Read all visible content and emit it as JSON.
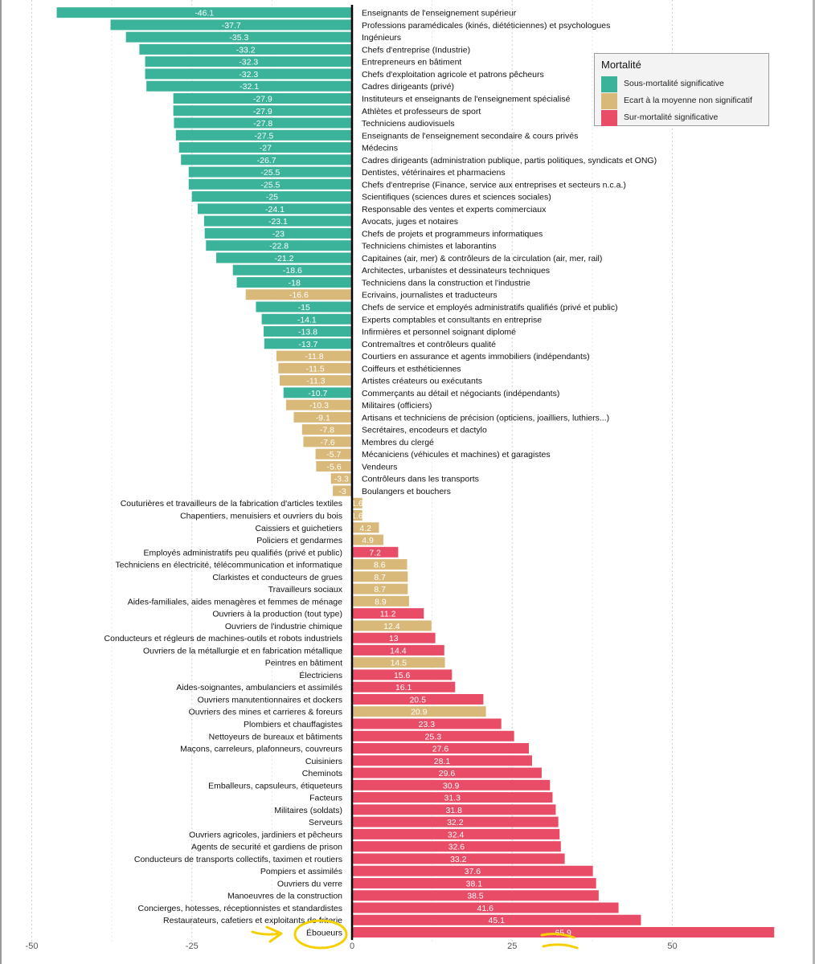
{
  "chart_data": {
    "type": "bar",
    "orientation": "horizontal",
    "xlim": [
      -52,
      66.5
    ],
    "xticks": [
      -50,
      -25,
      0,
      25,
      50
    ],
    "grid": true,
    "legend_position": "top-right",
    "legend": {
      "title": "Mortalité",
      "entries": [
        {
          "key": "sous",
          "label": "Sous-mortalité significative",
          "color": "#3bb39a"
        },
        {
          "key": "ecart",
          "label": "Ecart à la moyenne non significatif",
          "color": "#d8b97a"
        },
        {
          "key": "sur",
          "label": "Sur-mortalité significative",
          "color": "#e84c66"
        }
      ]
    },
    "bars": [
      {
        "label": "Enseignants de l'enseignement supérieur",
        "value": -46.1,
        "group": "sous"
      },
      {
        "label": "Professions paramédicales (kinés, diététiciennes) et psychologues",
        "value": -37.7,
        "group": "sous"
      },
      {
        "label": "Ingénieurs",
        "value": -35.3,
        "group": "sous"
      },
      {
        "label": "Chefs d'entreprise (Industrie)",
        "value": -33.2,
        "group": "sous"
      },
      {
        "label": "Entrepreneurs en bâtiment",
        "value": -32.3,
        "group": "sous"
      },
      {
        "label": "Chefs d'exploitation agricole et patrons pêcheurs",
        "value": -32.3,
        "group": "sous"
      },
      {
        "label": "Cadres dirigeants (privé)",
        "value": -32.1,
        "group": "sous"
      },
      {
        "label": "Instituteurs et enseignants de l'enseignement spécialisé",
        "value": -27.9,
        "group": "sous"
      },
      {
        "label": "Athlètes et professeurs de sport",
        "value": -27.9,
        "group": "sous"
      },
      {
        "label": "Techniciens audiovisuels",
        "value": -27.8,
        "group": "sous"
      },
      {
        "label": "Enseignants de l'enseignement secondaire & cours privés",
        "value": -27.5,
        "group": "sous"
      },
      {
        "label": "Médecins",
        "value": -27,
        "group": "sous"
      },
      {
        "label": "Cadres dirigeants (administration publique, partis politiques, syndicats et ONG)",
        "value": -26.7,
        "group": "sous"
      },
      {
        "label": "Dentistes, vétérinaires et pharmaciens",
        "value": -25.5,
        "group": "sous"
      },
      {
        "label": "Chefs d'entreprise (Finance, service aux entreprises et secteurs n.c.a.)",
        "value": -25.5,
        "group": "sous"
      },
      {
        "label": "Scientifiques (sciences dures et sciences sociales)",
        "value": -25,
        "group": "sous"
      },
      {
        "label": "Responsable des ventes et experts commerciaux",
        "value": -24.1,
        "group": "sous"
      },
      {
        "label": "Avocats, juges et notaires",
        "value": -23.1,
        "group": "sous"
      },
      {
        "label": "Chefs de projets et programmeurs informatiques",
        "value": -23,
        "group": "sous"
      },
      {
        "label": "Techniciens chimistes et laborantins",
        "value": -22.8,
        "group": "sous"
      },
      {
        "label": "Capitaines (air, mer) & contrôleurs de la circulation (air, mer, rail)",
        "value": -21.2,
        "group": "sous"
      },
      {
        "label": "Architectes, urbanistes et dessinateurs techniques",
        "value": -18.6,
        "group": "sous"
      },
      {
        "label": "Techniciens dans la construction et l'industrie",
        "value": -18,
        "group": "sous"
      },
      {
        "label": "Ecrivains, journalistes et traducteurs",
        "value": -16.6,
        "group": "ecart"
      },
      {
        "label": "Chefs de service et employés administratifs qualifiés (privé et public)",
        "value": -15,
        "group": "sous"
      },
      {
        "label": "Experts comptables et consultants en entreprise",
        "value": -14.1,
        "group": "sous"
      },
      {
        "label": "Infirmières et personnel soignant diplomé",
        "value": -13.8,
        "group": "sous"
      },
      {
        "label": "Contremaîtres et contrôleurs qualité",
        "value": -13.7,
        "group": "sous"
      },
      {
        "label": "Courtiers en assurance et agents immobiliers (indépendants)",
        "value": -11.8,
        "group": "ecart"
      },
      {
        "label": "Coiffeurs et esthéticiennes",
        "value": -11.5,
        "group": "ecart"
      },
      {
        "label": "Artistes créateurs ou exécutants",
        "value": -11.3,
        "group": "ecart"
      },
      {
        "label": "Commerçants au détail et négociants (indépendants)",
        "value": -10.7,
        "group": "sous"
      },
      {
        "label": "Militaires (officiers)",
        "value": -10.3,
        "group": "ecart"
      },
      {
        "label": "Artisans et techniciens de précision (opticiens, joailliers, luthiers...)",
        "value": -9.1,
        "group": "ecart"
      },
      {
        "label": "Secrétaires, encodeurs et dactylo",
        "value": -7.8,
        "group": "ecart"
      },
      {
        "label": "Membres du clergé",
        "value": -7.6,
        "group": "ecart"
      },
      {
        "label": "Mécaniciens (véhicules et machines) et garagistes",
        "value": -5.7,
        "group": "ecart"
      },
      {
        "label": "Vendeurs",
        "value": -5.6,
        "group": "ecart"
      },
      {
        "label": "Contrôleurs dans les transports",
        "value": -3.3,
        "group": "ecart"
      },
      {
        "label": "Boulangers et bouchers",
        "value": -3,
        "group": "ecart"
      },
      {
        "label": "Couturières et travailleurs de la fabrication d'articles textiles",
        "value": 1.6,
        "group": "ecart"
      },
      {
        "label": "Chapentiers, menuisiers et ouvriers du bois",
        "value": 1.6,
        "group": "ecart"
      },
      {
        "label": "Caissiers et guichetiers",
        "value": 4.2,
        "group": "ecart"
      },
      {
        "label": "Policiers et gendarmes",
        "value": 4.9,
        "group": "ecart"
      },
      {
        "label": "Employés administratifs peu qualifiés (privé et public)",
        "value": 7.2,
        "group": "sur"
      },
      {
        "label": "Techniciens en électricité, télécommunication et informatique",
        "value": 8.6,
        "group": "ecart"
      },
      {
        "label": "Clarkistes et conducteurs de grues",
        "value": 8.7,
        "group": "ecart"
      },
      {
        "label": "Travailleurs sociaux",
        "value": 8.7,
        "group": "ecart"
      },
      {
        "label": "Aides-familiales, aides menagères et femmes de ménage",
        "value": 8.9,
        "group": "ecart"
      },
      {
        "label": "Ouvriers à la production (tout type)",
        "value": 11.2,
        "group": "sur"
      },
      {
        "label": "Ouvriers de l'industrie chimique",
        "value": 12.4,
        "group": "ecart"
      },
      {
        "label": "Conducteurs et régleurs de machines-outils et robots industriels",
        "value": 13,
        "group": "sur"
      },
      {
        "label": "Ouvriers de la métallurgie et en fabrication métallique",
        "value": 14.4,
        "group": "sur"
      },
      {
        "label": "Peintres en bâtiment",
        "value": 14.5,
        "group": "ecart"
      },
      {
        "label": "Électriciens",
        "value": 15.6,
        "group": "sur"
      },
      {
        "label": "Aides-soignantes, ambulanciers et assimilés",
        "value": 16.1,
        "group": "sur"
      },
      {
        "label": "Ouvriers manutentionnaires et dockers",
        "value": 20.5,
        "group": "sur"
      },
      {
        "label": "Ouvriers des mines et carrieres & foreurs",
        "value": 20.9,
        "group": "ecart"
      },
      {
        "label": "Plombiers et chauffagistes",
        "value": 23.3,
        "group": "sur"
      },
      {
        "label": "Nettoyeurs de bureaux et bâtiments",
        "value": 25.3,
        "group": "sur"
      },
      {
        "label": "Maçons, carreleurs, plafonneurs, couvreurs",
        "value": 27.6,
        "group": "sur"
      },
      {
        "label": "Cuisiniers",
        "value": 28.1,
        "group": "sur"
      },
      {
        "label": "Cheminots",
        "value": 29.6,
        "group": "sur"
      },
      {
        "label": "Emballeurs, capsuleurs, étiqueteurs",
        "value": 30.9,
        "group": "sur"
      },
      {
        "label": "Facteurs",
        "value": 31.3,
        "group": "sur"
      },
      {
        "label": "Militaires (soldats)",
        "value": 31.8,
        "group": "sur"
      },
      {
        "label": "Serveurs",
        "value": 32.2,
        "group": "sur"
      },
      {
        "label": "Ouvriers agricoles, jardiniers et pêcheurs",
        "value": 32.4,
        "group": "sur"
      },
      {
        "label": "Agents de securité et gardiens de prison",
        "value": 32.6,
        "group": "sur"
      },
      {
        "label": "Conducteurs de transports collectifs, taximen et routiers",
        "value": 33.2,
        "group": "sur"
      },
      {
        "label": "Pompiers et assimilés",
        "value": 37.6,
        "group": "sur"
      },
      {
        "label": "Ouvriers du verre",
        "value": 38.1,
        "group": "sur"
      },
      {
        "label": "Manoeuvres de la construction",
        "value": 38.5,
        "group": "sur"
      },
      {
        "label": "Concierges, hotesses, réceptionnistes et standardistes",
        "value": 41.6,
        "group": "sur"
      },
      {
        "label": "Restaurateurs, cafetiers et exploitants de friterie",
        "value": 45.1,
        "group": "sur"
      },
      {
        "label": "Éboueurs",
        "value": 65.9,
        "group": "sur"
      }
    ]
  }
}
